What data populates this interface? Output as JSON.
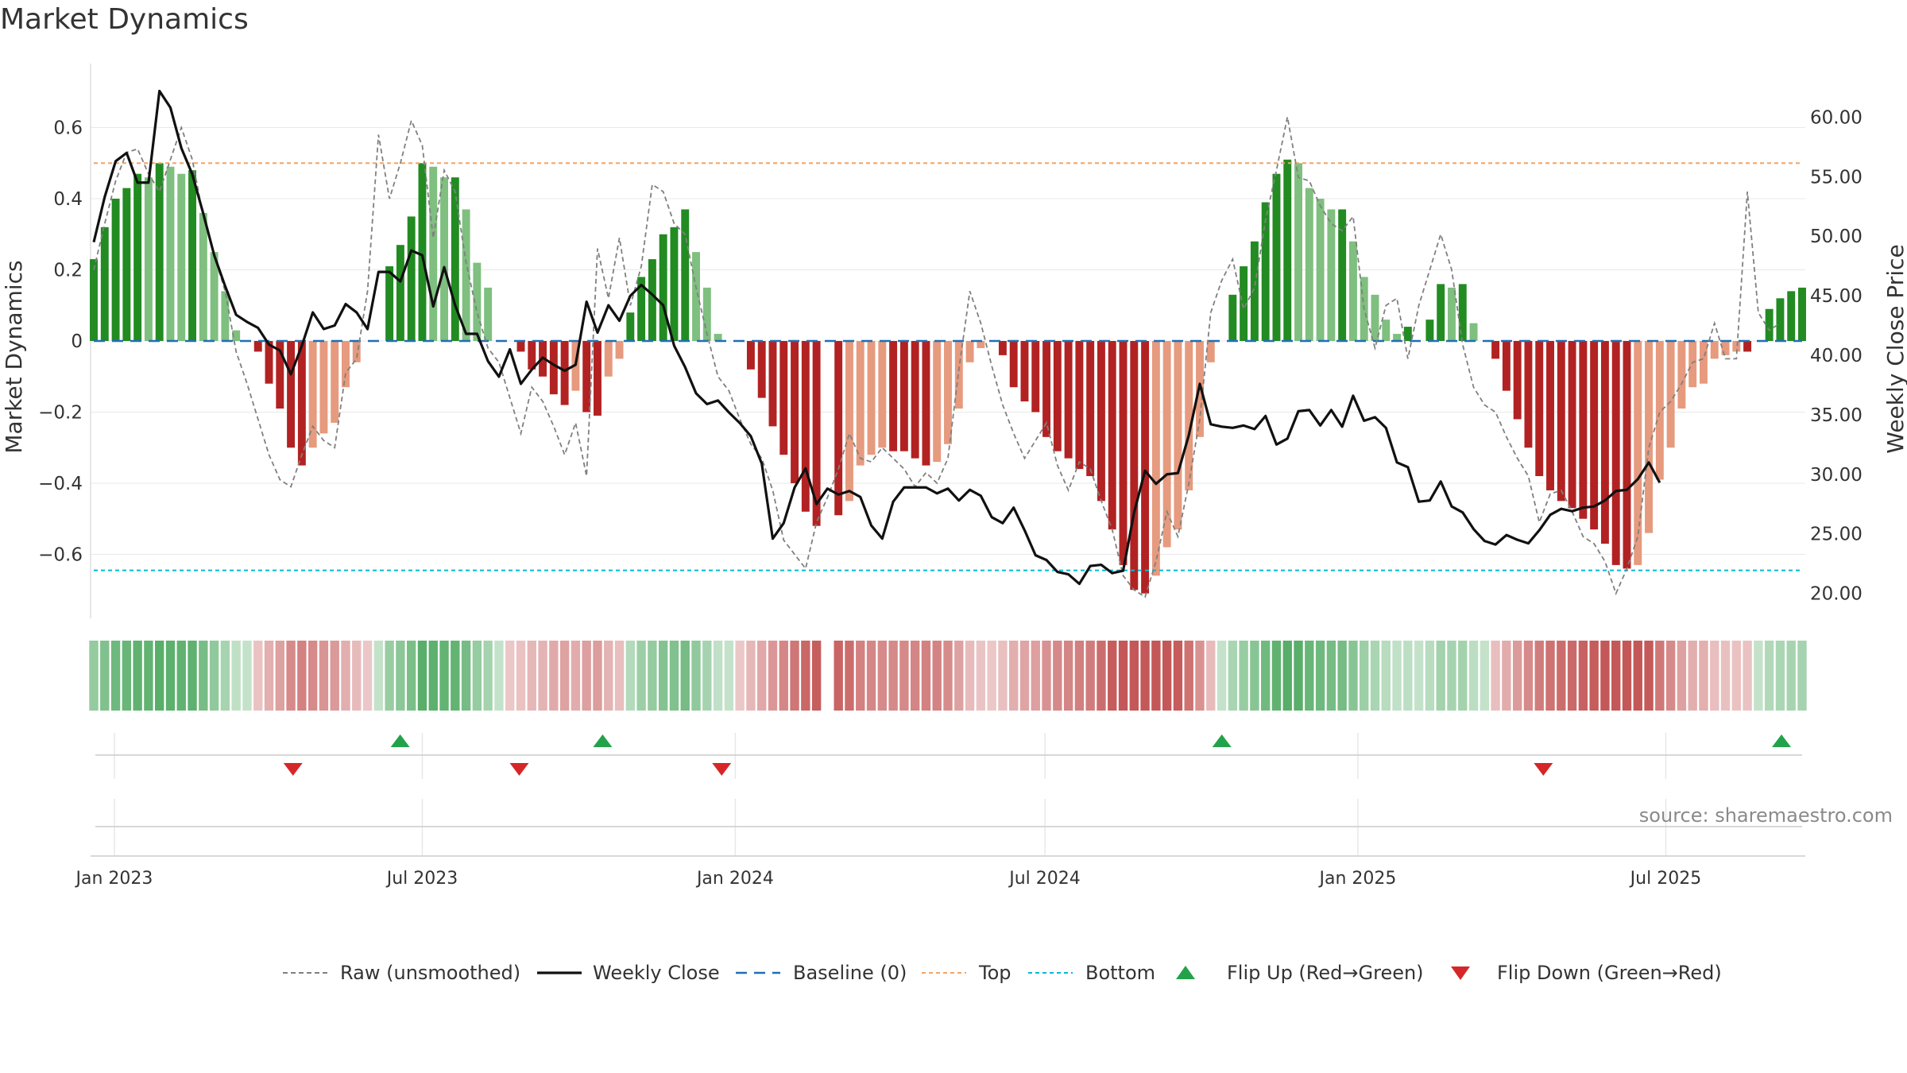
{
  "title": "Market Dynamics",
  "source": "source: sharemaestro.com",
  "chart_data": {
    "type": "bar",
    "ylabel_left": "Market Dynamics",
    "ylabel_right": "Weekly Close Price",
    "ylim_left": [
      -0.78,
      0.78
    ],
    "ylim_right": [
      17.9,
      64.5
    ],
    "yticks_left": [
      {
        "v": 0.6,
        "label": "0.6"
      },
      {
        "v": 0.4,
        "label": "0.4"
      },
      {
        "v": 0.2,
        "label": "0.2"
      },
      {
        "v": 0,
        "label": "0"
      },
      {
        "v": -0.2,
        "label": "−0.2"
      },
      {
        "v": -0.4,
        "label": "−0.4"
      },
      {
        "v": -0.6,
        "label": "−0.6"
      }
    ],
    "yticks_right": [
      {
        "v": 60,
        "label": "60.00"
      },
      {
        "v": 55,
        "label": "55.00"
      },
      {
        "v": 50,
        "label": "50.00"
      },
      {
        "v": 45,
        "label": "45.00"
      },
      {
        "v": 40,
        "label": "40.00"
      },
      {
        "v": 35,
        "label": "35.00"
      },
      {
        "v": 30,
        "label": "30.00"
      },
      {
        "v": 25,
        "label": "25.00"
      },
      {
        "v": 20,
        "label": "20.00"
      }
    ],
    "xticks": [
      {
        "date": "2023-01-01",
        "label": "Jan 2023"
      },
      {
        "date": "2023-07-01",
        "label": "Jul 2023"
      },
      {
        "date": "2024-01-01",
        "label": "Jan 2024"
      },
      {
        "date": "2024-07-01",
        "label": "Jul 2024"
      },
      {
        "date": "2025-01-01",
        "label": "Jan 2025"
      },
      {
        "date": "2025-07-01",
        "label": "Jul 2025"
      }
    ],
    "x_start": "2022-12-18",
    "x_end": "2025-09-21",
    "top_line": 0.5,
    "bottom_line": -0.645,
    "baseline": 0,
    "momentum": [
      0.23,
      0.32,
      0.4,
      0.43,
      0.47,
      0.46,
      0.5,
      0.49,
      0.47,
      0.48,
      0.36,
      0.25,
      0.14,
      0.03,
      0.0,
      -0.03,
      -0.12,
      -0.19,
      -0.3,
      -0.35,
      -0.3,
      -0.26,
      -0.23,
      -0.13,
      -0.06,
      0.0,
      0.0,
      0.21,
      0.27,
      0.35,
      0.5,
      0.49,
      0.46,
      0.46,
      0.37,
      0.22,
      0.15,
      0.0,
      0.0,
      -0.03,
      -0.08,
      -0.1,
      -0.15,
      -0.18,
      -0.14,
      -0.2,
      -0.21,
      -0.1,
      -0.05,
      0.08,
      0.18,
      0.23,
      0.3,
      0.32,
      0.37,
      0.25,
      0.15,
      0.02,
      0.0,
      0.0,
      -0.08,
      -0.16,
      -0.24,
      -0.32,
      -0.4,
      -0.48,
      -0.52,
      0.0,
      -0.49,
      -0.45,
      -0.35,
      -0.32,
      -0.3,
      -0.31,
      -0.31,
      -0.33,
      -0.35,
      -0.34,
      -0.29,
      -0.19,
      -0.06,
      -0.02,
      0.0,
      -0.04,
      -0.13,
      -0.17,
      -0.2,
      -0.27,
      -0.31,
      -0.33,
      -0.36,
      -0.38,
      -0.45,
      -0.53,
      -0.63,
      -0.7,
      -0.71,
      -0.66,
      -0.58,
      -0.53,
      -0.42,
      -0.27,
      -0.06,
      0.0,
      0.13,
      0.21,
      0.28,
      0.39,
      0.47,
      0.51,
      0.5,
      0.43,
      0.4,
      0.37,
      0.37,
      0.28,
      0.18,
      0.13,
      0.06,
      0.02,
      0.04,
      0.0,
      0.06,
      0.16,
      0.15,
      0.16,
      0.05,
      0.0,
      -0.05,
      -0.14,
      -0.22,
      -0.3,
      -0.38,
      -0.42,
      -0.45,
      -0.47,
      -0.5,
      -0.53,
      -0.57,
      -0.63,
      -0.64,
      -0.63,
      -0.54,
      -0.39,
      -0.3,
      -0.19,
      -0.13,
      -0.12,
      -0.05,
      -0.04,
      -0.03,
      -0.03,
      0.0,
      0.09,
      0.12,
      0.14,
      0.15
    ],
    "raw": [
      0.2,
      0.33,
      0.45,
      0.53,
      0.54,
      0.47,
      0.42,
      0.51,
      0.6,
      0.51,
      0.35,
      0.24,
      0.14,
      -0.03,
      -0.12,
      -0.22,
      -0.32,
      -0.39,
      -0.41,
      -0.32,
      -0.24,
      -0.28,
      -0.3,
      -0.09,
      -0.05,
      0.14,
      0.58,
      0.4,
      0.5,
      0.62,
      0.55,
      0.29,
      0.48,
      0.42,
      0.22,
      0.08,
      -0.02,
      -0.06,
      -0.16,
      -0.26,
      -0.13,
      -0.17,
      -0.24,
      -0.32,
      -0.23,
      -0.38,
      0.26,
      0.12,
      0.29,
      0.1,
      0.21,
      0.44,
      0.42,
      0.33,
      0.3,
      0.15,
      0.02,
      -0.1,
      -0.14,
      -0.22,
      -0.29,
      -0.33,
      -0.42,
      -0.56,
      -0.6,
      -0.64,
      -0.51,
      -0.44,
      -0.36,
      -0.26,
      -0.33,
      -0.34,
      -0.3,
      -0.33,
      -0.36,
      -0.41,
      -0.37,
      -0.4,
      -0.33,
      -0.08,
      0.14,
      0.05,
      -0.07,
      -0.18,
      -0.26,
      -0.33,
      -0.28,
      -0.23,
      -0.35,
      -0.42,
      -0.34,
      -0.36,
      -0.45,
      -0.53,
      -0.66,
      -0.7,
      -0.72,
      -0.62,
      -0.48,
      -0.55,
      -0.4,
      -0.22,
      0.08,
      0.17,
      0.23,
      0.09,
      0.15,
      0.34,
      0.48,
      0.63,
      0.46,
      0.45,
      0.38,
      0.33,
      0.31,
      0.35,
      0.09,
      -0.02,
      0.1,
      0.12,
      -0.05,
      0.1,
      0.2,
      0.3,
      0.2,
      -0.01,
      -0.13,
      -0.18,
      -0.2,
      -0.27,
      -0.33,
      -0.38,
      -0.51,
      -0.43,
      -0.42,
      -0.48,
      -0.55,
      -0.57,
      -0.62,
      -0.71,
      -0.64,
      -0.55,
      -0.3,
      -0.2,
      -0.17,
      -0.12,
      -0.06,
      -0.05,
      0.05,
      -0.05,
      -0.05,
      0.42,
      0.08,
      0.03,
      0.05
    ],
    "close": [
      49.5,
      53.3,
      56.3,
      57.0,
      54.5,
      54.5,
      62.2,
      60.8,
      57.4,
      55.2,
      51.9,
      48.4,
      45.8,
      43.4,
      42.8,
      42.3,
      40.9,
      40.4,
      38.4,
      40.8,
      43.6,
      42.2,
      42.5,
      44.3,
      43.6,
      42.2,
      47.0,
      47.0,
      46.2,
      48.8,
      48.4,
      44.1,
      47.4,
      44.2,
      41.8,
      41.8,
      39.5,
      38.2,
      40.5,
      37.6,
      38.8,
      39.8,
      39.2,
      38.7,
      39.2,
      44.5,
      41.9,
      44.2,
      42.9,
      45.0,
      45.9,
      45.1,
      44.2,
      40.8,
      39.0,
      36.8,
      35.9,
      36.2,
      35.2,
      34.3,
      33.2,
      30.9,
      24.6,
      25.9,
      28.9,
      30.5,
      27.5,
      28.8,
      28.3,
      28.6,
      28.1,
      25.7,
      24.6,
      27.7,
      28.9,
      28.9,
      28.9,
      28.4,
      28.8,
      27.8,
      28.7,
      28.2,
      26.4,
      25.9,
      27.2,
      25.3,
      23.2,
      22.8,
      21.8,
      21.6,
      20.8,
      22.3,
      22.4,
      21.7,
      21.9,
      26.8,
      30.3,
      29.2,
      30.0,
      30.1,
      33.3,
      37.6,
      34.2,
      34.0,
      33.9,
      34.1,
      33.8,
      34.9,
      32.5,
      33.0,
      35.3,
      35.4,
      34.1,
      35.4,
      34.0,
      36.6,
      34.5,
      34.8,
      33.9,
      31.0,
      30.6,
      27.7,
      27.8,
      29.4,
      27.3,
      26.8,
      25.4,
      24.4,
      24.1,
      24.9,
      24.5,
      24.2,
      25.3,
      26.6,
      27.1,
      26.9,
      27.2,
      27.3,
      27.8,
      28.6,
      28.7,
      29.6,
      31.0,
      29.3
    ],
    "flip_up": [
      "2023-06-18",
      "2023-10-15",
      "2024-10-13",
      "2025-09-07"
    ],
    "flip_down": [
      "2023-04-16",
      "2023-08-27",
      "2023-12-24",
      "2025-04-20"
    ],
    "colors": {
      "green_strong": "#228b22",
      "green_light": "#7fbf7f",
      "red_strong": "#b22222",
      "red_light": "#e69a7e",
      "top_line": "#f4a460",
      "bottom_line": "#00bcd4",
      "baseline": "#1f6fb5",
      "close_line": "#111111",
      "raw_line": "#808080",
      "flip_up": "#22a34a",
      "flip_down": "#d62728"
    },
    "legend": [
      {
        "key": "raw",
        "label": "Raw (unsmoothed)"
      },
      {
        "key": "close",
        "label": "Weekly Close"
      },
      {
        "key": "baseline",
        "label": "Baseline (0)"
      },
      {
        "key": "top",
        "label": "Top"
      },
      {
        "key": "bottom",
        "label": "Bottom"
      },
      {
        "key": "flipup",
        "label": "Flip Up (Red→Green)"
      },
      {
        "key": "flipdown",
        "label": "Flip Down (Green→Red)"
      }
    ]
  }
}
